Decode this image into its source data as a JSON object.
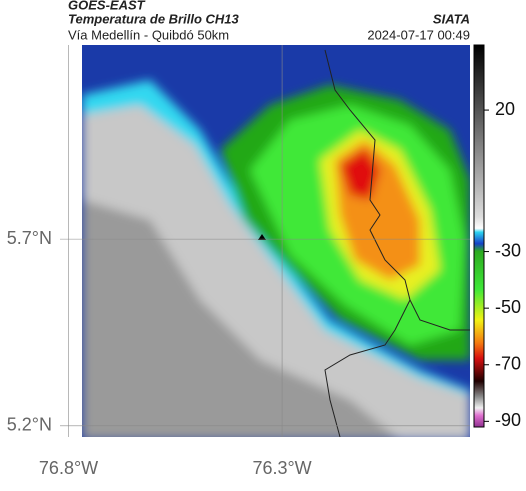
{
  "header": {
    "title": "GOES-EAST",
    "subtitle": "Temperatura de Brillo CH13",
    "source": "SIATA",
    "region": "Vía Medellín - Quibdó 50km",
    "timestamp": "2024-07-17 00:49"
  },
  "map": {
    "xlim": [
      -76.82,
      -75.86
    ],
    "ylim": [
      5.17,
      6.22
    ],
    "xticks": [
      {
        "value": -76.8,
        "label": "76.8°W"
      },
      {
        "value": -76.3,
        "label": "76.3°W"
      }
    ],
    "yticks": [
      {
        "value": 5.7,
        "label": "5.7°N"
      },
      {
        "value": 5.2,
        "label": "5.2°N"
      }
    ],
    "grid": true
  },
  "colorbar": {
    "clim": [
      43,
      -92
    ],
    "ticks": [
      20,
      -30,
      -50,
      -70,
      -90
    ]
  }
}
